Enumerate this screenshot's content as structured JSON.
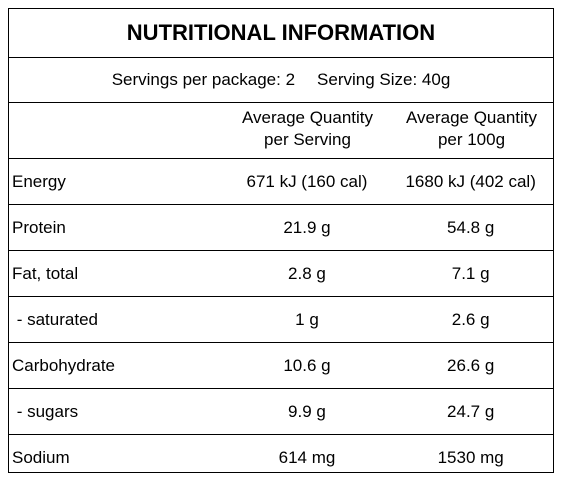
{
  "title": "NUTRITIONAL INFORMATION",
  "serving": {
    "servings_per_package": "Servings per package: 2",
    "serving_size": "Serving Size: 40g"
  },
  "columns": {
    "per_serving_line1": "Average Quantity",
    "per_serving_line2": "per Serving",
    "per_100g_line1": "Average Quantity",
    "per_100g_line2": "per 100g"
  },
  "rows": [
    {
      "name": "Energy",
      "per_serving": "671 kJ (160 cal)",
      "per_100g": "1680 kJ (402 cal)"
    },
    {
      "name": "Protein",
      "per_serving": "21.9 g",
      "per_100g": "54.8 g"
    },
    {
      "name": "Fat, total",
      "per_serving": "2.8 g",
      "per_100g": "7.1 g"
    },
    {
      "name": " - saturated",
      "per_serving": "1 g",
      "per_100g": "2.6 g"
    },
    {
      "name": "Carbohydrate",
      "per_serving": "10.6 g",
      "per_100g": "26.6 g"
    },
    {
      "name": " - sugars",
      "per_serving": "9.9 g",
      "per_100g": "24.7 g"
    },
    {
      "name": "Sodium",
      "per_serving": "614 mg",
      "per_100g": "1530 mg"
    }
  ]
}
